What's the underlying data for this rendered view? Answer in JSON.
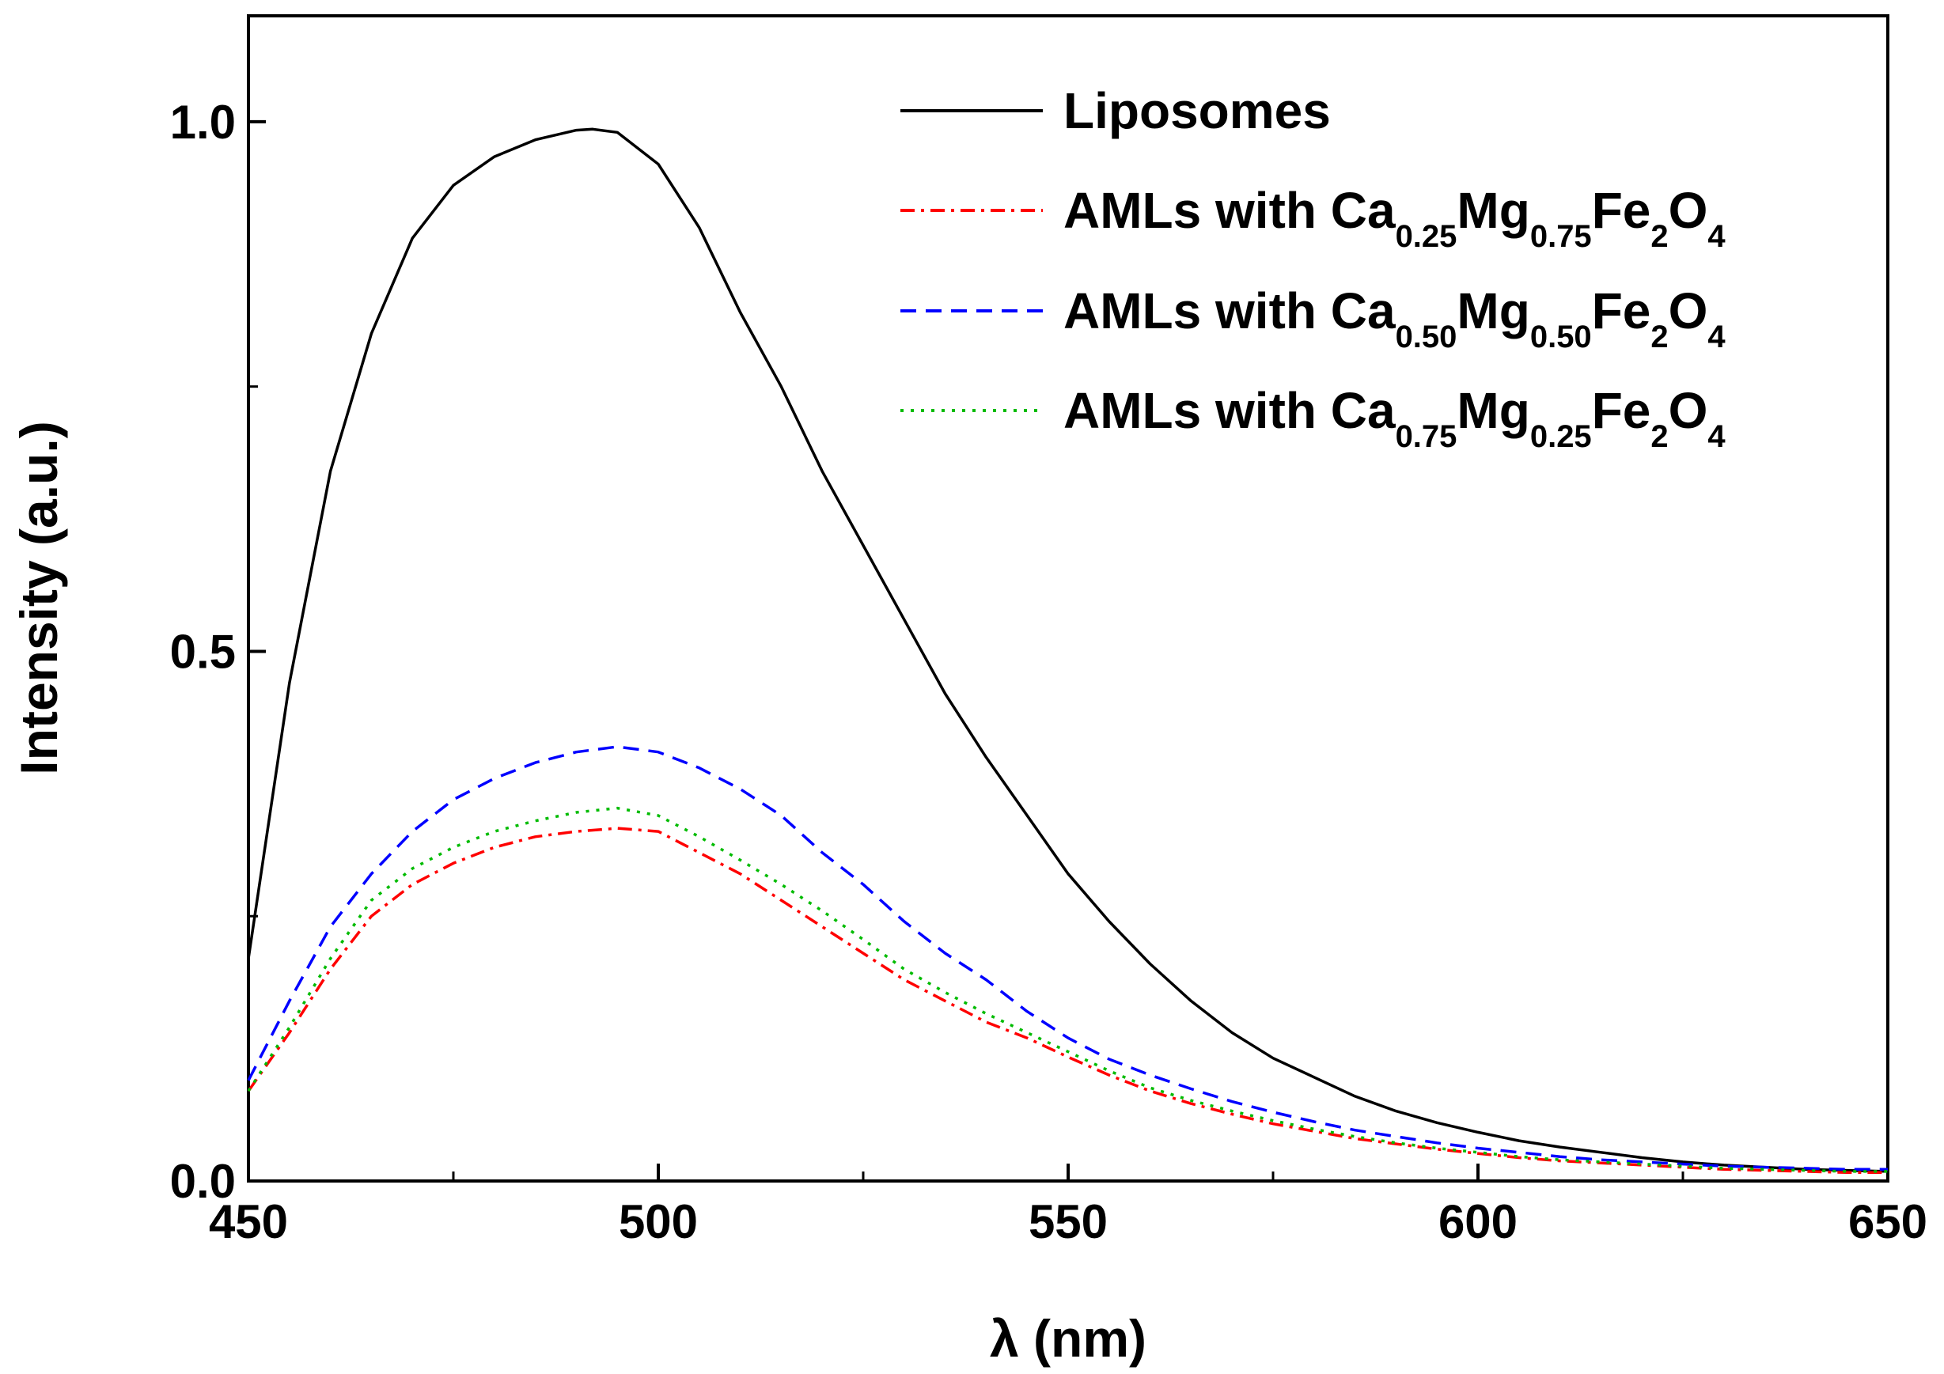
{
  "chart_data": {
    "type": "line",
    "title": "",
    "xlabel": "λ (nm)",
    "ylabel": "Intensity (a.u.)",
    "xlim": [
      450,
      650
    ],
    "ylim": [
      0,
      1.1
    ],
    "x_ticks": [
      "450",
      "500",
      "550",
      "600",
      "650"
    ],
    "y_ticks": [
      "0.0",
      "0.5",
      "1.0"
    ],
    "legend_position": "top-right",
    "series": [
      {
        "name": "Liposomes",
        "label": {
          "prefix": "Liposomes",
          "parts": []
        },
        "color": "#000000",
        "style": "solid",
        "x": [
          450,
          455,
          460,
          465,
          470,
          475,
          480,
          485,
          490,
          492,
          495,
          500,
          505,
          510,
          515,
          520,
          525,
          530,
          535,
          540,
          545,
          550,
          555,
          560,
          565,
          570,
          575,
          580,
          585,
          590,
          595,
          600,
          605,
          610,
          615,
          620,
          625,
          630,
          635,
          640,
          645,
          650
        ],
        "y": [
          0.21,
          0.47,
          0.67,
          0.8,
          0.89,
          0.94,
          0.967,
          0.983,
          0.992,
          0.993,
          0.99,
          0.96,
          0.9,
          0.82,
          0.75,
          0.67,
          0.6,
          0.53,
          0.46,
          0.4,
          0.345,
          0.29,
          0.245,
          0.205,
          0.17,
          0.14,
          0.116,
          0.098,
          0.08,
          0.066,
          0.055,
          0.046,
          0.038,
          0.032,
          0.027,
          0.022,
          0.018,
          0.015,
          0.013,
          0.011,
          0.01,
          0.009
        ]
      },
      {
        "name": "AMLs with Ca0.25Mg0.75Fe2O4",
        "label": {
          "prefix": "AMLs with ",
          "parts": [
            [
              "Ca",
              "0.25"
            ],
            [
              "Mg",
              "0.75"
            ],
            [
              "Fe",
              "2"
            ],
            [
              "O",
              "4"
            ]
          ]
        },
        "color": "#ff0000",
        "style": "dashdot",
        "x": [
          450,
          455,
          460,
          465,
          470,
          475,
          480,
          485,
          490,
          495,
          500,
          505,
          510,
          515,
          520,
          525,
          530,
          535,
          540,
          545,
          550,
          555,
          560,
          565,
          570,
          575,
          580,
          585,
          590,
          595,
          600,
          605,
          610,
          615,
          620,
          625,
          630,
          635,
          640,
          645,
          650
        ],
        "y": [
          0.085,
          0.14,
          0.2,
          0.25,
          0.28,
          0.3,
          0.315,
          0.325,
          0.33,
          0.333,
          0.33,
          0.31,
          0.29,
          0.265,
          0.24,
          0.215,
          0.19,
          0.17,
          0.15,
          0.135,
          0.117,
          0.1,
          0.085,
          0.073,
          0.063,
          0.054,
          0.047,
          0.04,
          0.035,
          0.03,
          0.026,
          0.022,
          0.019,
          0.017,
          0.015,
          0.013,
          0.011,
          0.01,
          0.009,
          0.008,
          0.008
        ]
      },
      {
        "name": "AMLs with Ca0.50Mg0.50Fe2O4",
        "label": {
          "prefix": "AMLs with ",
          "parts": [
            [
              "Ca",
              "0.50"
            ],
            [
              "Mg",
              "0.50"
            ],
            [
              "Fe",
              "2"
            ],
            [
              "O",
              "4"
            ]
          ]
        },
        "color": "#0000ff",
        "style": "dashed",
        "x": [
          450,
          455,
          460,
          465,
          470,
          475,
          480,
          485,
          490,
          495,
          500,
          505,
          510,
          515,
          520,
          525,
          530,
          535,
          540,
          545,
          550,
          555,
          560,
          565,
          570,
          575,
          580,
          585,
          590,
          595,
          600,
          605,
          610,
          615,
          620,
          625,
          630,
          635,
          640,
          645,
          650
        ],
        "y": [
          0.095,
          0.17,
          0.24,
          0.29,
          0.33,
          0.36,
          0.38,
          0.395,
          0.405,
          0.41,
          0.405,
          0.39,
          0.37,
          0.345,
          0.31,
          0.28,
          0.245,
          0.215,
          0.19,
          0.16,
          0.135,
          0.115,
          0.1,
          0.087,
          0.075,
          0.065,
          0.056,
          0.048,
          0.042,
          0.036,
          0.031,
          0.027,
          0.023,
          0.02,
          0.018,
          0.016,
          0.014,
          0.013,
          0.012,
          0.011,
          0.011
        ]
      },
      {
        "name": "AMLs with Ca0.75Mg0.25Fe2O4",
        "label": {
          "prefix": "AMLs with ",
          "parts": [
            [
              "Ca",
              "0.75"
            ],
            [
              "Mg",
              "0.25"
            ],
            [
              "Fe",
              "2"
            ],
            [
              "O",
              "4"
            ]
          ]
        },
        "color": "#00bb00",
        "style": "dotted",
        "x": [
          450,
          455,
          460,
          465,
          470,
          475,
          480,
          485,
          490,
          495,
          500,
          505,
          510,
          515,
          520,
          525,
          530,
          535,
          540,
          545,
          550,
          555,
          560,
          565,
          570,
          575,
          580,
          585,
          590,
          595,
          600,
          605,
          610,
          615,
          620,
          625,
          630,
          635,
          640,
          645,
          650
        ],
        "y": [
          0.085,
          0.145,
          0.21,
          0.265,
          0.295,
          0.315,
          0.33,
          0.34,
          0.348,
          0.352,
          0.345,
          0.325,
          0.303,
          0.28,
          0.255,
          0.228,
          0.2,
          0.178,
          0.158,
          0.14,
          0.122,
          0.104,
          0.088,
          0.076,
          0.066,
          0.057,
          0.049,
          0.042,
          0.036,
          0.031,
          0.027,
          0.023,
          0.02,
          0.018,
          0.016,
          0.014,
          0.012,
          0.011,
          0.01,
          0.009,
          0.009
        ]
      }
    ]
  }
}
